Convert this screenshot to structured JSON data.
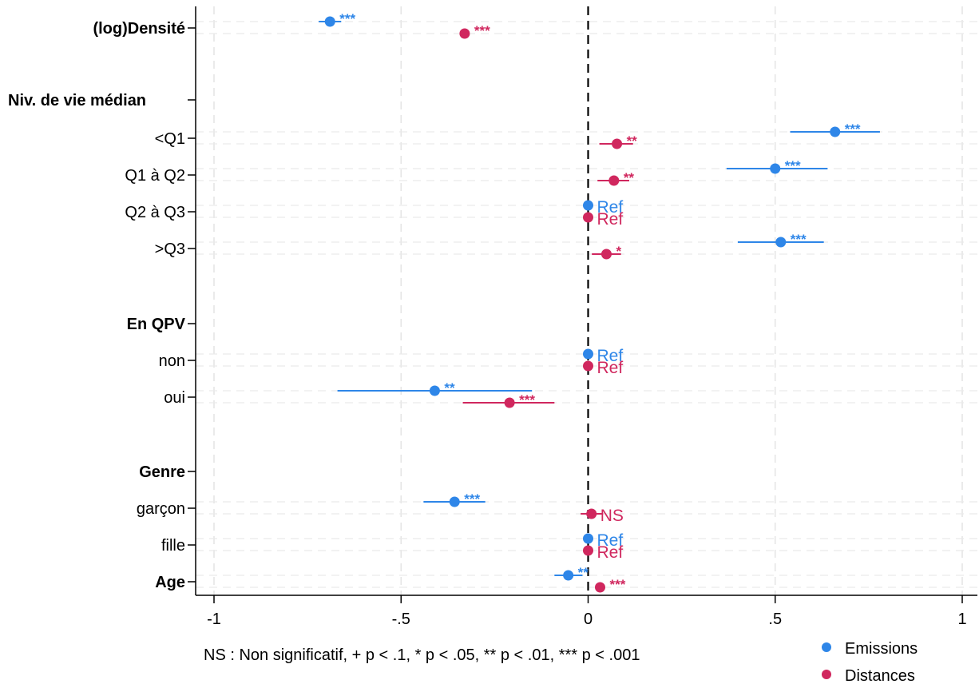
{
  "chart_data": {
    "type": "scatter",
    "subtype": "coefficient-plot",
    "orientation": "horizontal",
    "title": "",
    "xlabel": "",
    "ylabel": "",
    "xlim": [
      -1,
      1
    ],
    "x_ticks": [
      -1,
      -0.5,
      0,
      0.5,
      1
    ],
    "x_tick_labels": [
      "-1",
      "-.5",
      "0",
      ".5",
      "1"
    ],
    "reference_line": 0,
    "grid": true,
    "legend_position": "bottom-right",
    "row_labels": [
      {
        "key": "densite",
        "label": "(log)Densité",
        "bold": true
      },
      {
        "key": "niv_vie",
        "label": "Niv. de vie médian",
        "bold": true,
        "header": true
      },
      {
        "key": "q1",
        "label": "<Q1",
        "bold": false
      },
      {
        "key": "q1q2",
        "label": "Q1 à Q2",
        "bold": false
      },
      {
        "key": "q2q3",
        "label": "Q2 à Q3",
        "bold": false
      },
      {
        "key": "q3",
        "label": ">Q3",
        "bold": false
      },
      {
        "key": "qpv",
        "label": "En QPV",
        "bold": true,
        "header": true
      },
      {
        "key": "non",
        "label": "non",
        "bold": false
      },
      {
        "key": "oui",
        "label": "oui",
        "bold": false
      },
      {
        "key": "genre",
        "label": "Genre",
        "bold": true,
        "header": true
      },
      {
        "key": "garcon",
        "label": "garçon",
        "bold": false
      },
      {
        "key": "fille",
        "label": "fille",
        "bold": false
      },
      {
        "key": "age",
        "label": "Age",
        "bold": true
      }
    ],
    "series": [
      {
        "name": "Emissions",
        "color": "#2e86e8",
        "points": [
          {
            "row": "densite",
            "value": -0.69,
            "ci": [
              -0.72,
              -0.66
            ],
            "sig": "***"
          },
          {
            "row": "q1",
            "value": 0.66,
            "ci": [
              0.54,
              0.78
            ],
            "sig": "***"
          },
          {
            "row": "q1q2",
            "value": 0.5,
            "ci": [
              0.37,
              0.64
            ],
            "sig": "***"
          },
          {
            "row": "q2q3",
            "value": 0,
            "ci": null,
            "sig": "Ref"
          },
          {
            "row": "q3",
            "value": 0.515,
            "ci": [
              0.4,
              0.63
            ],
            "sig": "***"
          },
          {
            "row": "non",
            "value": 0,
            "ci": null,
            "sig": "Ref"
          },
          {
            "row": "oui",
            "value": -0.41,
            "ci": [
              -0.67,
              -0.15
            ],
            "sig": "**"
          },
          {
            "row": "garcon",
            "value": -0.357,
            "ci": [
              -0.44,
              -0.275
            ],
            "sig": "***"
          },
          {
            "row": "fille",
            "value": 0,
            "ci": null,
            "sig": "Ref"
          },
          {
            "row": "age",
            "value": -0.053,
            "ci": [
              -0.09,
              -0.015
            ],
            "sig": "**"
          }
        ]
      },
      {
        "name": "Distances",
        "color": "#d0275e",
        "points": [
          {
            "row": "densite",
            "value": -0.33,
            "ci": [
              -0.34,
              -0.32
            ],
            "sig": "***"
          },
          {
            "row": "q1",
            "value": 0.077,
            "ci": [
              0.03,
              0.12
            ],
            "sig": "**"
          },
          {
            "row": "q1q2",
            "value": 0.069,
            "ci": [
              0.025,
              0.11
            ],
            "sig": "**"
          },
          {
            "row": "q2q3",
            "value": 0,
            "ci": null,
            "sig": "Ref"
          },
          {
            "row": "q3",
            "value": 0.049,
            "ci": [
              0.01,
              0.088
            ],
            "sig": "*"
          },
          {
            "row": "non",
            "value": 0,
            "ci": null,
            "sig": "Ref"
          },
          {
            "row": "oui",
            "value": -0.21,
            "ci": [
              -0.335,
              -0.09
            ],
            "sig": "***"
          },
          {
            "row": "garcon",
            "value": 0.009,
            "ci": [
              -0.02,
              0.04
            ],
            "sig": "NS"
          },
          {
            "row": "fille",
            "value": 0,
            "ci": null,
            "sig": "Ref"
          },
          {
            "row": "age",
            "value": 0.032,
            "ci": [
              0.025,
              0.04
            ],
            "sig": "***"
          }
        ]
      }
    ],
    "note": "NS : Non significatif, + p < .1, * p < .05, ** p < .01, *** p < .001"
  },
  "legend": {
    "items": [
      {
        "label": "Emissions",
        "color": "#2e86e8"
      },
      {
        "label": "Distances",
        "color": "#d0275e"
      }
    ]
  }
}
